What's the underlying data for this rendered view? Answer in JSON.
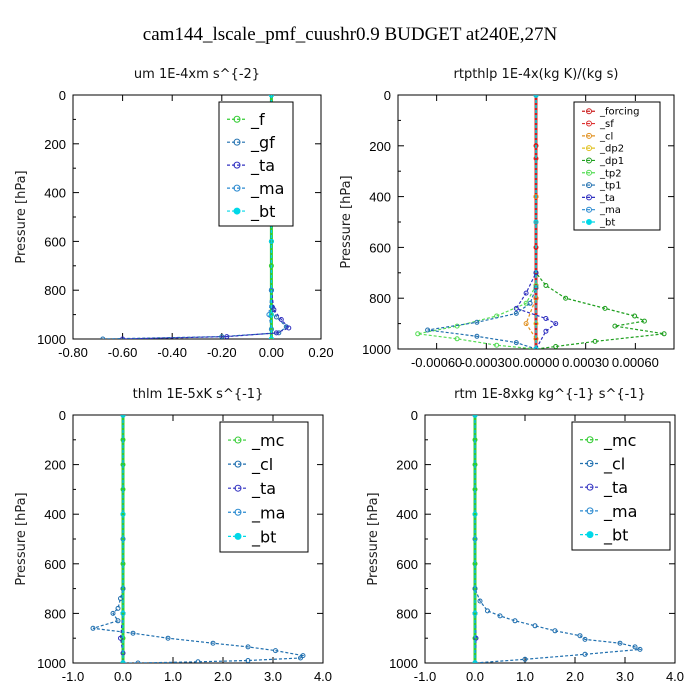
{
  "page_title": "cam144_lscale_pmf_cuushr0.9  BUDGET at240E,27N",
  "chart_data": [
    {
      "type": "line",
      "title": "um  1E-4xm s^{-2}",
      "ylabel": "Pressure [hPa]",
      "xlim": [
        -0.8,
        0.2
      ],
      "ylim": [
        1000,
        0
      ],
      "xticks": [
        "-0.80",
        "-0.60",
        "-0.40",
        "-0.20",
        "0.00",
        "0.20"
      ],
      "yticks": [
        "0",
        "200",
        "400",
        "600",
        "800",
        "1000"
      ],
      "legend_position": "top-right",
      "series": [
        {
          "name": "_f",
          "color": "#33cc33",
          "x": [
            0,
            0,
            0,
            0,
            0,
            0,
            0,
            0,
            0,
            0,
            0,
            0
          ],
          "y": [
            0,
            100,
            200,
            300,
            400,
            500,
            600,
            700,
            800,
            900,
            960,
            1000
          ]
        },
        {
          "name": "_gf",
          "color": "#1f6faf",
          "x": [
            0,
            0,
            0,
            0,
            0,
            0.005,
            0.02,
            0.06,
            0.03,
            -0.2,
            -0.68
          ],
          "y": [
            0,
            200,
            400,
            600,
            800,
            870,
            910,
            950,
            975,
            990,
            1000
          ]
        },
        {
          "name": "_ta",
          "color": "#3030c0",
          "x": [
            0,
            0,
            0,
            0.01,
            0.04,
            0.07,
            0.02,
            -0.18,
            -0.6
          ],
          "y": [
            0,
            400,
            800,
            880,
            920,
            955,
            975,
            990,
            1000
          ]
        },
        {
          "name": "_ma",
          "color": "#2a8ad0",
          "x": [
            0,
            0,
            0,
            -0.01,
            0,
            0
          ],
          "y": [
            0,
            400,
            800,
            900,
            960,
            1000
          ]
        },
        {
          "name": "_bt",
          "color": "#00d8e8",
          "x": [
            0,
            0,
            0,
            0,
            0
          ],
          "y": [
            0,
            300,
            600,
            900,
            1000
          ]
        }
      ]
    },
    {
      "type": "line",
      "title": "rtpthlp  1E-4x(kg K)/(kg s)",
      "ylabel": "Pressure [hPa]",
      "xlim": [
        -0.0007,
        0.0007
      ],
      "ylim": [
        1000,
        0
      ],
      "xticks": [
        "-0.00060",
        "-0.00030",
        "0.00000",
        "0.00030",
        "0.00060"
      ],
      "yticks": [
        "0",
        "200",
        "400",
        "600",
        "800",
        "1000"
      ],
      "legend_position": "top-right",
      "series": [
        {
          "name": "_forcing",
          "color": "#cc2222",
          "x": [
            0,
            0,
            0,
            0,
            0,
            0
          ],
          "y": [
            0,
            200,
            400,
            600,
            800,
            1000
          ]
        },
        {
          "name": "_sf",
          "color": "#dd3333",
          "x": [
            0,
            0,
            0,
            0,
            0
          ],
          "y": [
            0,
            250,
            500,
            750,
            1000
          ]
        },
        {
          "name": "_cl",
          "color": "#e09020",
          "x": [
            0,
            0,
            0,
            -5e-05,
            0,
            0
          ],
          "y": [
            0,
            400,
            800,
            900,
            960,
            1000
          ]
        },
        {
          "name": "_dp2",
          "color": "#e0c020",
          "x": [
            0,
            0,
            0,
            0
          ],
          "y": [
            0,
            500,
            900,
            1000
          ]
        },
        {
          "name": "_dp1",
          "color": "#20a020",
          "x": [
            0,
            0,
            5e-05,
            0.00015,
            0.00035,
            0.0005,
            0.00055,
            0.0004,
            0.00065,
            0.0003,
            0.0001,
            0
          ],
          "y": [
            0,
            700,
            750,
            800,
            840,
            870,
            890,
            910,
            940,
            970,
            990,
            1000
          ]
        },
        {
          "name": "_tp2",
          "color": "#55dd55",
          "x": [
            0,
            0,
            -5e-05,
            -0.0002,
            -0.0004,
            -0.0006,
            -0.0004,
            -0.0002,
            0
          ],
          "y": [
            0,
            750,
            820,
            870,
            910,
            940,
            960,
            985,
            1000
          ]
        },
        {
          "name": "_tp1",
          "color": "#1f6faf",
          "x": [
            0,
            0,
            -3e-05,
            -0.0001,
            -0.0003,
            -0.00055,
            -0.0003,
            -0.0001,
            0
          ],
          "y": [
            0,
            760,
            820,
            860,
            895,
            925,
            950,
            975,
            1000
          ]
        },
        {
          "name": "_ta",
          "color": "#3030c0",
          "x": [
            0,
            0,
            -5e-05,
            -0.0001,
            5e-05,
            0.0001,
            5e-05,
            0
          ],
          "y": [
            0,
            700,
            780,
            840,
            880,
            900,
            930,
            1000
          ]
        },
        {
          "name": "_ma",
          "color": "#2a8ad0",
          "x": [
            0,
            0,
            0
          ],
          "y": [
            0,
            500,
            1000
          ]
        },
        {
          "name": "_bt",
          "color": "#00d8e8",
          "x": [
            0,
            0,
            0
          ],
          "y": [
            0,
            500,
            1000
          ]
        }
      ]
    },
    {
      "type": "line",
      "title": "thlm  1E-5xK s^{-1}",
      "ylabel": "Pressure [hPa]",
      "xlim": [
        -1.0,
        4.0
      ],
      "ylim": [
        1000,
        0
      ],
      "xticks": [
        "-1.0",
        "0.0",
        "1.0",
        "2.0",
        "3.0",
        "4.0"
      ],
      "yticks": [
        "0",
        "200",
        "400",
        "600",
        "800",
        "1000"
      ],
      "legend_position": "top-right",
      "series": [
        {
          "name": "_mc",
          "color": "#33cc33",
          "x": [
            0,
            0,
            0,
            0,
            0,
            0,
            0,
            0,
            0,
            0,
            0
          ],
          "y": [
            0,
            100,
            200,
            300,
            400,
            500,
            600,
            700,
            800,
            900,
            1000
          ]
        },
        {
          "name": "_cl",
          "color": "#1f6faf",
          "x": [
            0,
            0,
            -0.05,
            -0.1,
            -0.2,
            -0.1,
            -0.6,
            0.2,
            0.9,
            1.8,
            2.5,
            3.05,
            3.6,
            3.55,
            2.5,
            1.5,
            0.3,
            0
          ],
          "y": [
            0,
            700,
            740,
            780,
            800,
            830,
            860,
            880,
            900,
            920,
            935,
            950,
            970,
            980,
            990,
            995,
            1000,
            1000
          ]
        },
        {
          "name": "_ta",
          "color": "#3030c0",
          "x": [
            0,
            0,
            -0.05,
            0,
            0
          ],
          "y": [
            0,
            800,
            900,
            960,
            1000
          ]
        },
        {
          "name": "_ma",
          "color": "#2a8ad0",
          "x": [
            0,
            0,
            0
          ],
          "y": [
            0,
            500,
            1000
          ]
        },
        {
          "name": "_bt",
          "color": "#00d8e8",
          "x": [
            0,
            0,
            0,
            0
          ],
          "y": [
            0,
            400,
            800,
            1000
          ]
        }
      ]
    },
    {
      "type": "line",
      "title": "rtm  1E-8xkg kg^{-1} s^{-1}",
      "ylabel": "Pressure [hPa]",
      "xlim": [
        -1.0,
        4.0
      ],
      "ylim": [
        1000,
        0
      ],
      "xticks": [
        "-1.0",
        "0.0",
        "1.0",
        "2.0",
        "3.0",
        "4.0"
      ],
      "yticks": [
        "0",
        "200",
        "400",
        "600",
        "800",
        "1000"
      ],
      "legend_position": "top-right",
      "series": [
        {
          "name": "_mc",
          "color": "#33cc33",
          "x": [
            0,
            0,
            0,
            0,
            0,
            0,
            0,
            0,
            0,
            0,
            0
          ],
          "y": [
            0,
            100,
            200,
            300,
            400,
            500,
            600,
            700,
            800,
            900,
            1000
          ]
        },
        {
          "name": "_cl",
          "color": "#1f6faf",
          "x": [
            0,
            0,
            0.1,
            0.25,
            0.5,
            0.8,
            1.2,
            1.6,
            2.1,
            2.2,
            2.9,
            3.2,
            3.3,
            2.2,
            1.0,
            0
          ],
          "y": [
            0,
            700,
            750,
            790,
            810,
            830,
            850,
            870,
            890,
            905,
            920,
            935,
            945,
            965,
            985,
            1000
          ]
        },
        {
          "name": "_ta",
          "color": "#3030c0",
          "x": [
            0,
            0,
            0.02,
            0
          ],
          "y": [
            0,
            800,
            900,
            1000
          ]
        },
        {
          "name": "_ma",
          "color": "#2a8ad0",
          "x": [
            0,
            0,
            0
          ],
          "y": [
            0,
            500,
            1000
          ]
        },
        {
          "name": "_bt",
          "color": "#00d8e8",
          "x": [
            0,
            0,
            0,
            0
          ],
          "y": [
            0,
            400,
            800,
            1000
          ]
        }
      ]
    }
  ]
}
